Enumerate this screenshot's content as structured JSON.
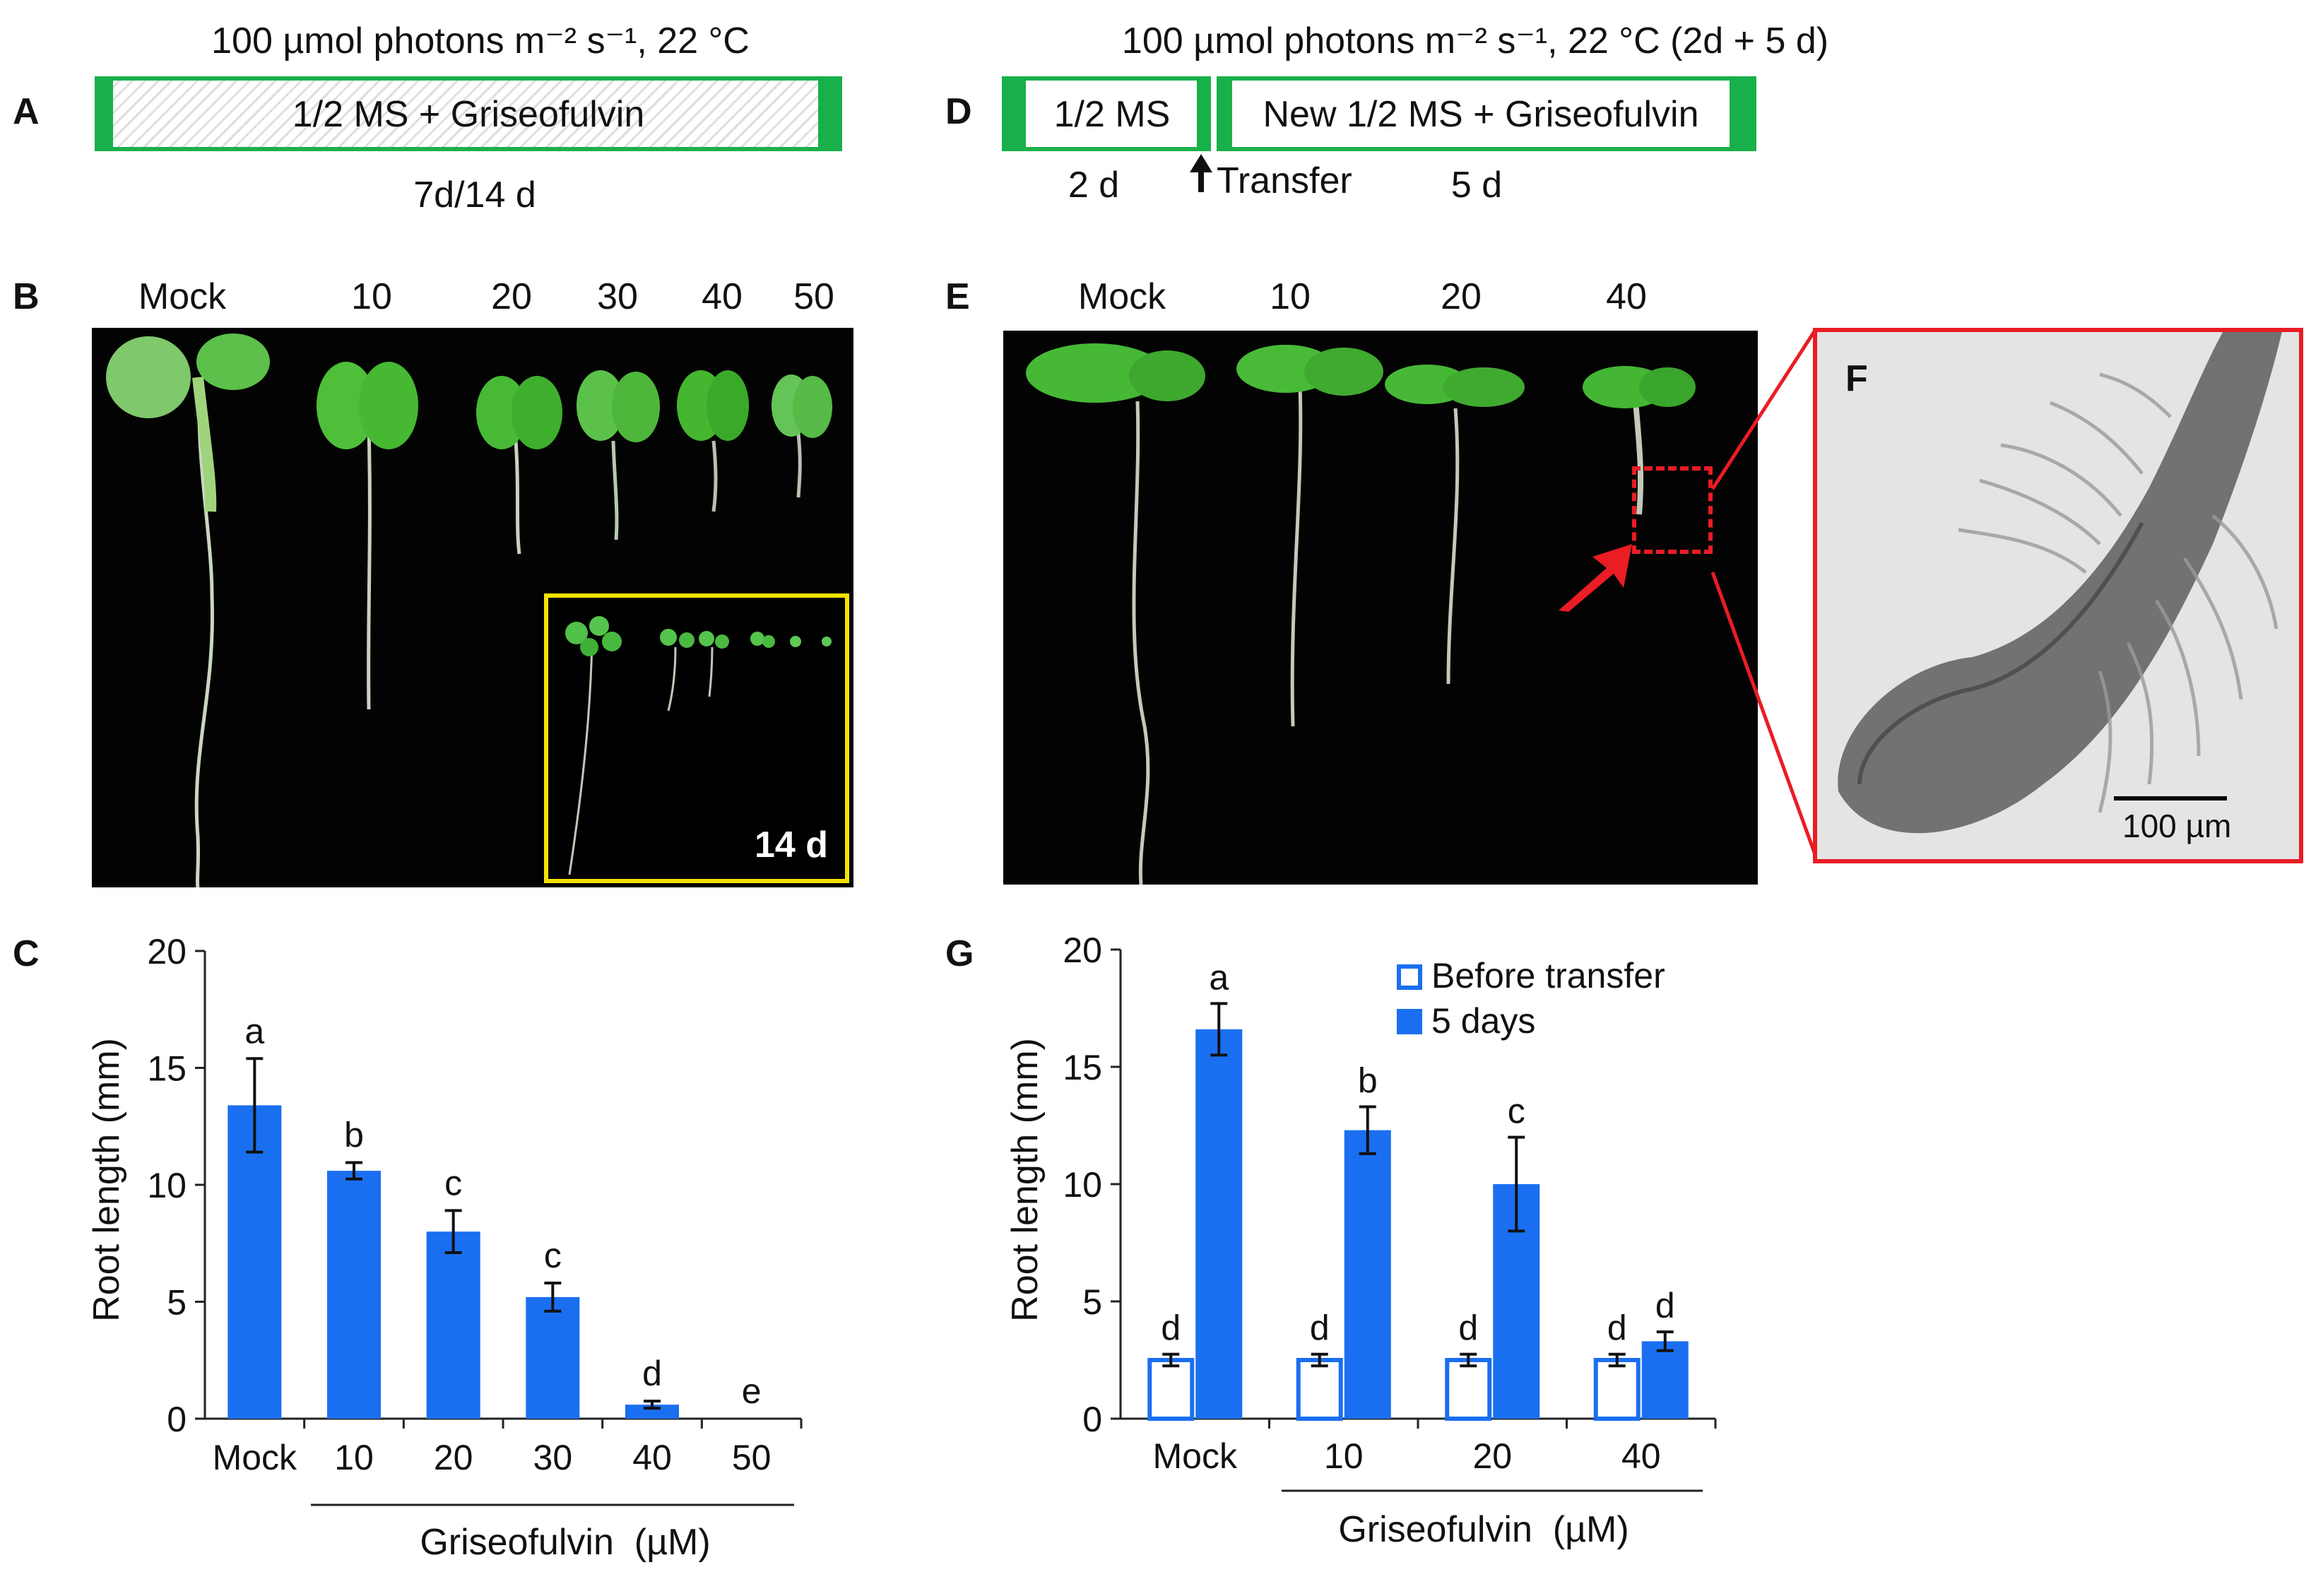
{
  "panels": {
    "A": {
      "letter": "A",
      "condition": "100 µmol photons m⁻² s⁻¹, 22 °C",
      "medium": "1/2 MS + Griseofulvin",
      "duration": "7d/14 d"
    },
    "B": {
      "letter": "B",
      "column_labels": [
        "Mock",
        "10",
        "20",
        "30",
        "40",
        "50"
      ],
      "inset_label": "14 d"
    },
    "C": {
      "letter": "C"
    },
    "D": {
      "letter": "D",
      "condition": "100 µmol photons m⁻² s⁻¹, 22 °C (2d + 5 d)",
      "medium_before": "1/2 MS",
      "medium_after": "New 1/2 MS + Griseofulvin",
      "duration_before": "2 d",
      "transfer_label": "Transfer",
      "duration_after": "5 d"
    },
    "E": {
      "letter": "E",
      "column_labels": [
        "Mock",
        "10",
        "20",
        "40"
      ]
    },
    "F": {
      "letter": "F",
      "scale_bar": "100 µm"
    },
    "G": {
      "letter": "G"
    }
  },
  "colors": {
    "bar_blue": "#1a6ff0",
    "medium_green": "#18b04a",
    "inset_yellow": "#f4e300",
    "highlight_red": "#ea1c24"
  },
  "chart_data": [
    {
      "panel": "C",
      "type": "bar",
      "ylabel": "Root length (mm)",
      "xlabel": "Griseofulvin  (µM)",
      "ylim": [
        0,
        20
      ],
      "yticks": [
        0,
        5,
        10,
        15,
        20
      ],
      "categories": [
        "Mock",
        "10",
        "20",
        "30",
        "40",
        "50"
      ],
      "series": [
        {
          "values": [
            13.4,
            10.6,
            8.0,
            5.2,
            0.6,
            0.0
          ],
          "errors": [
            2.0,
            0.35,
            0.9,
            0.6,
            0.15,
            0.0
          ],
          "letters": [
            "a",
            "b",
            "c",
            "c",
            "d",
            "e"
          ]
        }
      ]
    },
    {
      "panel": "G",
      "type": "bar",
      "ylabel": "Root length (mm)",
      "xlabel": "Griseofulvin  (µM)",
      "ylim": [
        0,
        20
      ],
      "yticks": [
        0,
        5,
        10,
        15,
        20
      ],
      "categories": [
        "Mock",
        "10",
        "20",
        "40"
      ],
      "legend_position": "top-right",
      "series": [
        {
          "name": "Before transfer",
          "values": [
            2.5,
            2.5,
            2.5,
            2.5
          ],
          "errors": [
            0.25,
            0.25,
            0.25,
            0.25
          ],
          "letters": [
            "d",
            "d",
            "d",
            "d"
          ]
        },
        {
          "name": "5 days",
          "values": [
            16.6,
            12.3,
            10.0,
            3.3
          ],
          "errors": [
            1.1,
            1.0,
            2.0,
            0.4
          ],
          "letters": [
            "a",
            "b",
            "c",
            "d"
          ]
        }
      ]
    }
  ]
}
